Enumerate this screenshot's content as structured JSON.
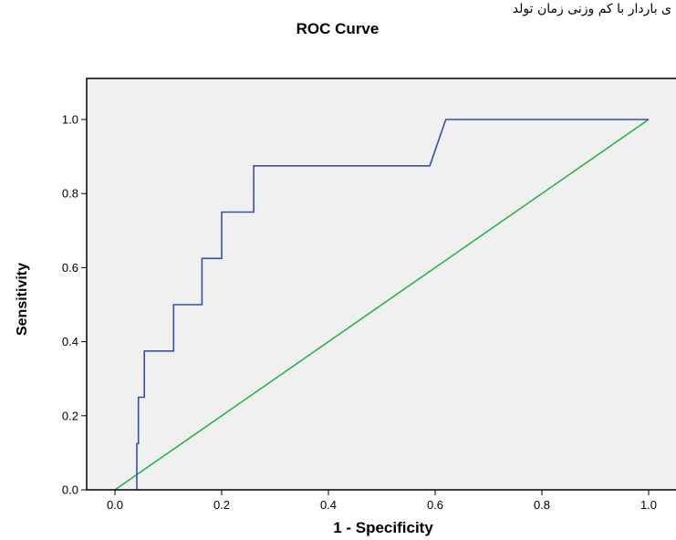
{
  "header_text": "ی باردار با کم وزنی زمان تولد",
  "chart_data": {
    "type": "line",
    "title": "ROC Curve",
    "xlabel": "1 - Specificity",
    "ylabel": "Sensitivity",
    "xlim": [
      -0.05,
      1.05
    ],
    "ylim": [
      0.0,
      1.1
    ],
    "xticks": [
      0.0,
      0.2,
      0.4,
      0.6,
      0.8,
      1.0
    ],
    "xtick_labels": [
      "0.0",
      "0.2",
      "0.4",
      "0.6",
      "0.8",
      "1.0"
    ],
    "yticks": [
      0.0,
      0.2,
      0.4,
      0.6,
      0.8,
      1.0
    ],
    "ytick_labels": [
      "0.0",
      "0.2",
      "0.4",
      "0.6",
      "0.8",
      "1.0"
    ],
    "grid": false,
    "background": "#f0f0f0",
    "series": [
      {
        "color": "#3a4fa3",
        "x": [
          0.041,
          0.041,
          0.044,
          0.044,
          0.048,
          0.048,
          0.055,
          0.055,
          0.11,
          0.11,
          0.163,
          0.163,
          0.19,
          0.19,
          0.2,
          0.2,
          0.247,
          0.247,
          0.26,
          0.26,
          0.59,
          0.62,
          1.0
        ],
        "y": [
          0.0,
          0.125,
          0.125,
          0.25,
          0.25,
          0.25,
          0.25,
          0.375,
          0.375,
          0.5,
          0.5,
          0.625,
          0.625,
          0.625,
          0.625,
          0.75,
          0.75,
          0.75,
          0.75,
          0.875,
          0.875,
          1.0,
          1.0
        ]
      },
      {
        "color": "#2bb34a",
        "x": [
          0.0,
          1.0
        ],
        "y": [
          0.0,
          1.0
        ]
      }
    ]
  }
}
